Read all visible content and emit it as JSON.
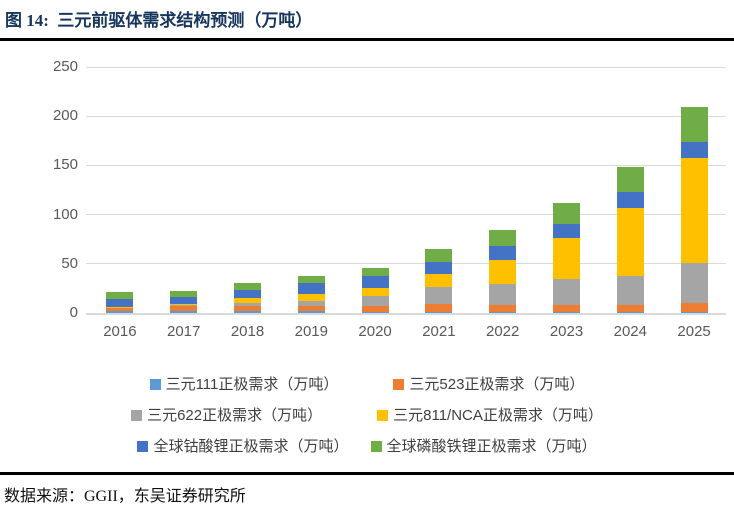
{
  "header": {
    "title": "图 14:  三元前驱体需求结构预测（万吨）"
  },
  "footer": {
    "source": "数据来源：GGII，东吴证券研究所"
  },
  "colors": {
    "title_navy": "#17365d",
    "axis_label_gray": "#595959",
    "gridline_gray": "#d9d9d9",
    "divider_black": "#000000"
  },
  "chart_data": {
    "type": "bar",
    "stacked": true,
    "title": "三元前驱体需求结构预测（万吨）",
    "xlabel": "",
    "ylabel": "",
    "ylim": [
      0,
      250
    ],
    "yticks": [
      0,
      50,
      100,
      150,
      200,
      250
    ],
    "grid": true,
    "legend_position": "bottom",
    "categories": [
      "2016",
      "2017",
      "2018",
      "2019",
      "2020",
      "2021",
      "2022",
      "2023",
      "2024",
      "2025"
    ],
    "series": [
      {
        "name": "三元111正极需求（万吨）",
        "color": "#5b9bd5",
        "values": [
          2.5,
          2.5,
          2.0,
          2.0,
          1.3,
          1.3,
          1.0,
          1.0,
          1.0,
          1.0
        ]
      },
      {
        "name": "三元523正极需求（万吨）",
        "color": "#ed7d31",
        "values": [
          3.0,
          4.5,
          5.0,
          5.0,
          5.4,
          7.4,
          7.5,
          7.4,
          7.4,
          9.0
        ]
      },
      {
        "name": "三元622正极需求（万吨）",
        "color": "#a5a5a5",
        "values": [
          0.5,
          1.0,
          3.5,
          4.7,
          10.2,
          17.7,
          21.3,
          26.4,
          29.5,
          40.6
        ]
      },
      {
        "name": "三元811/NCA正极需求（万吨）",
        "color": "#ffc000",
        "values": [
          0.5,
          1.0,
          4.5,
          7.8,
          8.5,
          12.8,
          24.4,
          41.3,
          68.7,
          106.6
        ]
      },
      {
        "name": "全球钴酸锂正极需求（万吨）",
        "color": "#4472c4",
        "values": [
          7.5,
          6.8,
          8.5,
          11.0,
          11.8,
          13.0,
          14.2,
          14.6,
          15.9,
          16.2
        ]
      },
      {
        "name": "全球磷酸铁锂正极需求（万吨）",
        "color": "#70ad47",
        "values": [
          7.0,
          7.0,
          7.0,
          7.5,
          8.1,
          13.2,
          16.0,
          21.3,
          26.1,
          35.6
        ]
      }
    ],
    "totals": [
      21.0,
      22.8,
      30.5,
      38.0,
      45.3,
      65.4,
      84.4,
      112.0,
      148.6,
      209.0
    ]
  }
}
